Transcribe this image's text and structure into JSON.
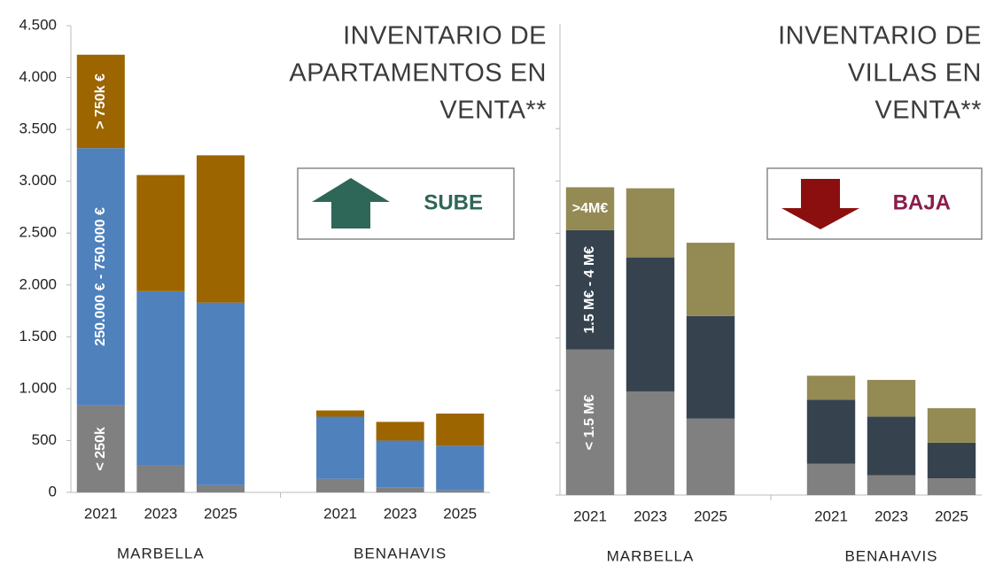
{
  "chart_data": [
    {
      "type": "bar",
      "stacked": true,
      "title": [
        "INVENTARIO DE",
        "APARTAMENTOS EN",
        "VENTA**"
      ],
      "annotation": {
        "label": "SUBE",
        "direction": "up",
        "color": "#2e6657",
        "arrow_color": "#2e6657"
      },
      "categories": [
        "2021",
        "2023",
        "2025",
        "2021",
        "2023",
        "2025"
      ],
      "group_labels": [
        "MARBELLA",
        "BENAHAVIS"
      ],
      "ylim": [
        0,
        4500
      ],
      "yticks": [
        0,
        500,
        {
          "value": 1000,
          "label": "1.000"
        },
        {
          "value": 1500,
          "label": "1.500"
        },
        {
          "value": 2000,
          "label": "2.000"
        },
        {
          "value": 2500,
          "label": "2.500"
        },
        {
          "value": 3000,
          "label": "3.000"
        },
        {
          "value": 3500,
          "label": "3.500"
        },
        {
          "value": 4000,
          "label": "4.000"
        },
        {
          "value": 4500,
          "label": "4.500"
        }
      ],
      "tick_labels": true,
      "series": [
        {
          "name": "< 250k",
          "color": "#808080",
          "values": [
            840,
            260,
            70,
            130,
            50,
            20
          ]
        },
        {
          "name": "250.000 € - 750.000 €",
          "color": "#4f81bd",
          "values": [
            2480,
            1680,
            1760,
            600,
            450,
            430
          ]
        },
        {
          "name": "> 750k €",
          "color": "#9c6500",
          "values": [
            900,
            1120,
            1420,
            60,
            180,
            310
          ]
        }
      ]
    },
    {
      "type": "bar",
      "stacked": true,
      "title": [
        "INVENTARIO DE",
        "VILLAS EN",
        "VENTA**"
      ],
      "annotation": {
        "label": "BAJA",
        "direction": "down",
        "color": "#8a1c4a",
        "arrow_color": "#8b0f0f"
      },
      "categories": [
        "2021",
        "2023",
        "2025",
        "2021",
        "2023",
        "2025"
      ],
      "group_labels": [
        "MARBELLA",
        "BENAHAVIS"
      ],
      "ylim": [
        0,
        4500
      ],
      "yticks": [
        0,
        500,
        1000,
        1500,
        2000,
        2500,
        3000,
        3500
      ],
      "tick_labels": false,
      "series": [
        {
          "name": "< 1.5 M€",
          "color": "#808080",
          "values": [
            1390,
            990,
            730,
            300,
            190,
            160
          ]
        },
        {
          "name": "1.5 M€ - 4 M€",
          "color": "#36434f",
          "values": [
            1140,
            1280,
            980,
            610,
            560,
            340
          ]
        },
        {
          "name": ">4M€",
          "color": "#948a54",
          "values": [
            410,
            660,
            700,
            230,
            350,
            330
          ]
        }
      ]
    }
  ]
}
